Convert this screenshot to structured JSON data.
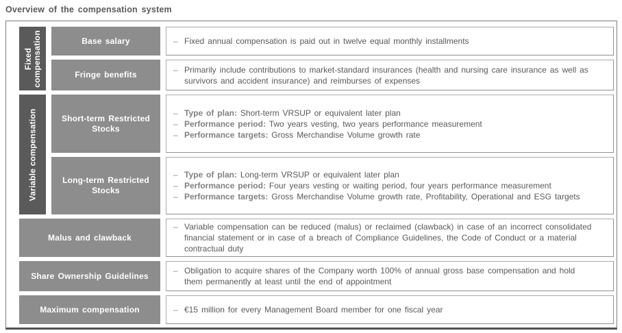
{
  "title": "Overview of the compensation system",
  "ui": {
    "bullet": "–"
  },
  "colors": {
    "group_bar": "#5a5a5a",
    "label_box": "#8d8d8d",
    "body_text": "#595959",
    "lead_text": "#808080",
    "box_border": "#ababab",
    "frame_border": "#7e7e7e",
    "label_text": "#ffffff"
  },
  "groups": [
    {
      "label": "Fixed compensation"
    },
    {
      "label": "Variable compensation"
    }
  ],
  "rows": [
    {
      "label": "Base salary",
      "bullets": [
        {
          "text": "Fixed annual compensation is paid out in twelve equal monthly installments"
        }
      ]
    },
    {
      "label": "Fringe benefits",
      "bullets": [
        {
          "text": "Primarily include contributions to market-standard insurances (health and nursing care insurance as well as survivors and accident insurance) and reimburses of expenses"
        }
      ]
    },
    {
      "label": "Short-term Restricted Stocks",
      "bullets": [
        {
          "lead": "Type of plan:",
          "text": "Short-term VRSUP or equivalent later plan"
        },
        {
          "lead": "Performance period:",
          "text": "Two years vesting, two years performance measurement"
        },
        {
          "lead": "Performance targets:",
          "text": "Gross Merchandise Volume growth rate"
        }
      ]
    },
    {
      "label": "Long-term Restricted Stocks",
      "bullets": [
        {
          "lead": "Type of plan:",
          "text": "Long-term VRSUP or equivalent later plan"
        },
        {
          "lead": "Performance period:",
          "text": "Four years vesting or waiting period, four years performance measurement"
        },
        {
          "lead": "Performance targets:",
          "text": "Gross Merchandise Volume growth rate, Profitability, Operational and ESG targets"
        }
      ]
    },
    {
      "label": "Malus and clawback",
      "bullets": [
        {
          "text": "Variable compensation can be reduced (malus) or reclaimed (clawback) in case of an incorrect consolidated financial statement or in case of a breach of Compliance Guidelines, the Code of Conduct or a material contractual duty"
        }
      ]
    },
    {
      "label": "Share Ownership Guidelines",
      "bullets": [
        {
          "text": "Obligation to acquire shares of the Company worth 100% of annual gross base compensation and hold them permanently at least until the end of appointment"
        }
      ]
    },
    {
      "label": "Maximum compensation",
      "bullets": [
        {
          "text": "€15 million for every Management Board member for one fiscal year"
        }
      ]
    }
  ]
}
